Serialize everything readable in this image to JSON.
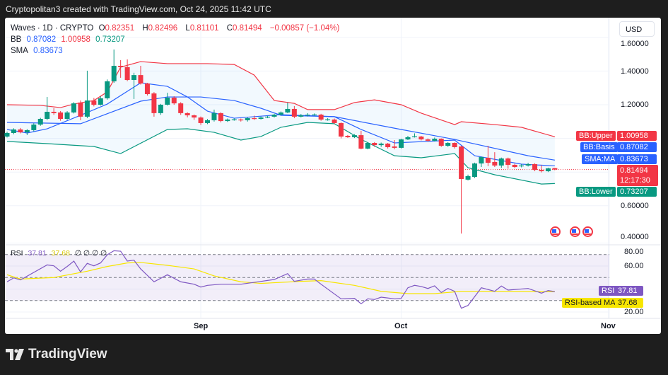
{
  "credit": "Cryptopolitan3 created with TradingView.com, Oct 24, 2025 11:42 UTC",
  "brand": "TradingView",
  "currency_button": "USD",
  "legend": {
    "symbol": "Waves · 1D · CRYPTO",
    "o_label": "O",
    "o": "0.82351",
    "h_label": "H",
    "h": "0.82496",
    "l_label": "L",
    "l": "0.81101",
    "c_label": "C",
    "c": "0.81494",
    "change": "−0.00857 (−1.04%)",
    "bb_label": "BB",
    "bb_basis": "0.87082",
    "bb_upper": "1.00958",
    "bb_lower": "0.73207",
    "sma_label": "SMA",
    "sma": "0.83673",
    "rsi_label": "RSI",
    "rsi": "37.81",
    "rsi_ma": "37.68",
    "rsi_extra": "∅ ∅ ∅ ∅"
  },
  "badges": {
    "bb_upper": {
      "label": "BB:Upper",
      "value": "1.00958"
    },
    "bb_basis": {
      "label": "BB:Basis",
      "value": "0.87082"
    },
    "sma": {
      "label": "SMA:MA",
      "value": "0.83673"
    },
    "price": {
      "value": "0.81494",
      "countdown": "12:17:30"
    },
    "bb_lower": {
      "label": "BB:Lower",
      "value": "0.73207"
    },
    "rsi": {
      "label": "RSI",
      "value": "37.81"
    },
    "rsi_ma": {
      "label": "RSI-based MA",
      "value": "37.68"
    }
  },
  "colors": {
    "up": "#089981",
    "down": "#f23645",
    "basis": "#2962ff",
    "sma": "#2962ff",
    "upper": "#f23645",
    "lower": "#089981",
    "rsi": "#7e57c2",
    "rsi_ma": "#f7e600"
  },
  "icons": [
    "us-flag-event-icon",
    "us-flag-event-icon",
    "us-flag-event-icon",
    "tradingview-logo-icon"
  ],
  "chart_data": {
    "type": "candlestick",
    "price_axis": {
      "ticks": [
        "1.60000",
        "1.40000",
        "1.20000",
        "0.60000",
        "0.40000"
      ]
    },
    "time_axis": {
      "ticks": [
        {
          "date": "09-01",
          "label": "Sep"
        },
        {
          "date": "10-01",
          "label": "Oct"
        },
        {
          "date": "11-01",
          "label": "Nov"
        }
      ]
    },
    "last_price": 0.81494,
    "candles": [
      [
        "08-03",
        1.011,
        1.04,
        1.005,
        1.032
      ],
      [
        "08-04",
        1.032,
        1.06,
        1.025,
        1.053
      ],
      [
        "08-05",
        1.053,
        1.062,
        1.03,
        1.036
      ],
      [
        "08-06",
        1.036,
        1.055,
        1.02,
        1.049
      ],
      [
        "08-07",
        1.049,
        1.09,
        1.042,
        1.082
      ],
      [
        "08-08",
        1.082,
        1.122,
        1.075,
        1.116
      ],
      [
        "08-09",
        1.116,
        1.246,
        1.108,
        1.158
      ],
      [
        "08-10",
        1.158,
        1.18,
        1.14,
        1.15
      ],
      [
        "08-11",
        1.154,
        1.162,
        1.105,
        1.116
      ],
      [
        "08-12",
        1.116,
        1.162,
        1.11,
        1.154
      ],
      [
        "08-13",
        1.154,
        1.215,
        1.148,
        1.208
      ],
      [
        "08-14",
        1.213,
        1.225,
        1.108,
        1.129
      ],
      [
        "08-15",
        1.129,
        1.402,
        1.12,
        1.225
      ],
      [
        "08-16",
        1.225,
        1.24,
        1.19,
        1.2
      ],
      [
        "08-17",
        1.2,
        1.25,
        1.195,
        1.238
      ],
      [
        "08-18",
        1.238,
        1.35,
        1.23,
        1.339
      ],
      [
        "08-19",
        1.339,
        1.528,
        1.33,
        1.431
      ],
      [
        "08-20",
        1.431,
        1.465,
        1.36,
        1.423
      ],
      [
        "08-21",
        1.423,
        1.469,
        1.34,
        1.347
      ],
      [
        "08-22",
        1.347,
        1.39,
        1.234,
        1.376
      ],
      [
        "08-23",
        1.376,
        1.431,
        1.32,
        1.326
      ],
      [
        "08-24",
        1.326,
        1.33,
        1.255,
        1.263
      ],
      [
        "08-25",
        1.267,
        1.275,
        1.129,
        1.15
      ],
      [
        "08-26",
        1.15,
        1.205,
        1.14,
        1.2
      ],
      [
        "08-27",
        1.2,
        1.271,
        1.195,
        1.242
      ],
      [
        "08-28",
        1.242,
        1.25,
        1.2,
        1.208
      ],
      [
        "08-29",
        1.208,
        1.215,
        1.14,
        1.15
      ],
      [
        "08-30",
        1.15,
        1.155,
        1.125,
        1.137
      ],
      [
        "08-31",
        1.137,
        1.142,
        1.11,
        1.124
      ],
      [
        "09-01",
        1.124,
        1.13,
        1.08,
        1.091
      ],
      [
        "09-02",
        1.091,
        1.115,
        1.085,
        1.108
      ],
      [
        "09-03",
        1.108,
        1.171,
        1.1,
        1.15
      ],
      [
        "09-04",
        1.15,
        1.155,
        1.095,
        1.103
      ],
      [
        "09-05",
        1.103,
        1.118,
        1.098,
        1.112
      ],
      [
        "09-06",
        1.112,
        1.118,
        1.105,
        1.113
      ],
      [
        "09-07",
        1.112,
        1.118,
        1.1,
        1.108
      ],
      [
        "09-08",
        1.108,
        1.125,
        1.1,
        1.12
      ],
      [
        "09-09",
        1.12,
        1.135,
        1.11,
        1.116
      ],
      [
        "09-10",
        1.116,
        1.13,
        1.112,
        1.124
      ],
      [
        "09-11",
        1.124,
        1.134,
        1.12,
        1.129
      ],
      [
        "09-12",
        1.129,
        1.146,
        1.124,
        1.141
      ],
      [
        "09-13",
        1.141,
        1.16,
        1.136,
        1.154
      ],
      [
        "09-14",
        1.154,
        1.213,
        1.15,
        1.175
      ],
      [
        "09-15",
        1.175,
        1.192,
        1.12,
        1.129
      ],
      [
        "09-16",
        1.129,
        1.145,
        1.125,
        1.137
      ],
      [
        "09-17",
        1.137,
        1.15,
        1.13,
        1.141
      ],
      [
        "09-18",
        1.141,
        1.148,
        1.135,
        1.142
      ],
      [
        "09-19",
        1.141,
        1.146,
        1.105,
        1.112
      ],
      [
        "09-20",
        1.112,
        1.12,
        1.105,
        1.113
      ],
      [
        "09-21",
        1.112,
        1.118,
        1.085,
        1.091
      ],
      [
        "09-22",
        1.091,
        1.095,
        1.0,
        1.011
      ],
      [
        "09-23",
        1.015,
        1.02,
        1.003,
        1.007
      ],
      [
        "09-24",
        1.007,
        1.025,
        1.002,
        1.019
      ],
      [
        "09-25",
        1.019,
        1.045,
        0.935,
        0.939
      ],
      [
        "09-26",
        0.939,
        0.978,
        0.935,
        0.973
      ],
      [
        "09-27",
        0.973,
        0.978,
        0.95,
        0.96
      ],
      [
        "09-28",
        0.96,
        0.975,
        0.95,
        0.969
      ],
      [
        "09-29",
        0.969,
        0.973,
        0.94,
        0.948
      ],
      [
        "09-30",
        0.952,
        0.99,
        0.935,
        0.944
      ],
      [
        "10-01",
        0.944,
        0.998,
        0.94,
        0.994
      ],
      [
        "10-02",
        0.994,
        1.015,
        0.99,
        1.007
      ],
      [
        "10-03",
        1.011,
        1.03,
        1.005,
        1.012
      ],
      [
        "10-04",
        1.011,
        1.015,
        0.988,
        0.994
      ],
      [
        "10-05",
        0.994,
        1.0,
        0.98,
        0.986
      ],
      [
        "10-06",
        0.986,
        1.005,
        0.982,
        0.998
      ],
      [
        "10-07",
        0.998,
        1.0,
        0.95,
        0.956
      ],
      [
        "10-08",
        0.956,
        0.978,
        0.95,
        0.973
      ],
      [
        "10-09",
        0.973,
        0.976,
        0.94,
        0.948
      ],
      [
        "10-10",
        0.952,
        0.956,
        0.435,
        0.759
      ],
      [
        "10-11",
        0.755,
        0.785,
        0.75,
        0.776
      ],
      [
        "10-12",
        0.771,
        0.856,
        0.765,
        0.851
      ],
      [
        "10-13",
        0.851,
        0.892,
        0.83,
        0.889
      ],
      [
        "10-14",
        0.885,
        0.956,
        0.835,
        0.855
      ],
      [
        "10-15",
        0.86,
        0.918,
        0.83,
        0.839
      ],
      [
        "10-16",
        0.839,
        0.886,
        0.825,
        0.881
      ],
      [
        "10-17",
        0.881,
        0.886,
        0.82,
        0.843
      ],
      [
        "10-18",
        0.843,
        0.85,
        0.823,
        0.83
      ],
      [
        "10-19",
        0.834,
        0.848,
        0.828,
        0.839
      ],
      [
        "10-20",
        0.839,
        0.855,
        0.833,
        0.847
      ],
      [
        "10-21",
        0.847,
        0.852,
        0.805,
        0.813
      ],
      [
        "10-22",
        0.813,
        0.84,
        0.798,
        0.805
      ],
      [
        "10-23",
        0.805,
        0.826,
        0.8,
        0.822
      ],
      [
        "10-24",
        0.82351,
        0.82496,
        0.81101,
        0.81494
      ]
    ],
    "bb_upper": [
      [
        "08-03",
        1.2
      ],
      [
        "08-08",
        1.196
      ],
      [
        "08-11",
        1.183
      ],
      [
        "08-13",
        1.204
      ],
      [
        "08-16",
        1.225
      ],
      [
        "08-18",
        1.276
      ],
      [
        "08-20",
        1.423
      ],
      [
        "08-23",
        1.456
      ],
      [
        "08-27",
        1.444
      ],
      [
        "09-02",
        1.444
      ],
      [
        "09-06",
        1.439
      ],
      [
        "09-09",
        1.376
      ],
      [
        "09-12",
        1.225
      ],
      [
        "09-15",
        1.208
      ],
      [
        "09-17",
        1.171
      ],
      [
        "09-21",
        1.171
      ],
      [
        "09-24",
        1.213
      ],
      [
        "09-27",
        1.229
      ],
      [
        "10-01",
        1.2
      ],
      [
        "10-04",
        1.15
      ],
      [
        "10-09",
        1.082
      ],
      [
        "10-10",
        1.099
      ],
      [
        "10-15",
        1.082
      ],
      [
        "10-19",
        1.066
      ],
      [
        "10-24",
        1.00958
      ]
    ],
    "bb_basis": [
      [
        "08-03",
        1.095
      ],
      [
        "08-14",
        1.087
      ],
      [
        "08-23",
        1.221
      ],
      [
        "08-27",
        1.246
      ],
      [
        "09-01",
        1.246
      ],
      [
        "09-06",
        1.225
      ],
      [
        "09-10",
        1.179
      ],
      [
        "09-13",
        1.137
      ],
      [
        "09-21",
        1.129
      ],
      [
        "10-01",
        1.053
      ],
      [
        "10-09",
        0.994
      ],
      [
        "10-20",
        0.897
      ],
      [
        "10-24",
        0.87082
      ]
    ],
    "bb_lower": [
      [
        "08-03",
        0.982
      ],
      [
        "08-09",
        0.969
      ],
      [
        "08-16",
        0.952
      ],
      [
        "08-20",
        0.91
      ],
      [
        "08-27",
        1.053
      ],
      [
        "08-30",
        1.057
      ],
      [
        "09-03",
        1.036
      ],
      [
        "09-07",
        0.99
      ],
      [
        "09-10",
        1.011
      ],
      [
        "09-13",
        1.066
      ],
      [
        "09-17",
        1.095
      ],
      [
        "09-21",
        1.087
      ],
      [
        "09-25",
        0.994
      ],
      [
        "09-30",
        0.897
      ],
      [
        "10-04",
        0.885
      ],
      [
        "10-09",
        0.91
      ],
      [
        "10-11",
        0.826
      ],
      [
        "10-15",
        0.784
      ],
      [
        "10-22",
        0.729
      ],
      [
        "10-24",
        0.73207
      ]
    ],
    "sma": [
      [
        "08-03",
        1.053
      ],
      [
        "08-06",
        1.032
      ],
      [
        "08-09",
        1.057
      ],
      [
        "08-14",
        1.137
      ],
      [
        "08-18",
        1.204
      ],
      [
        "08-23",
        1.33
      ],
      [
        "08-27",
        1.309
      ],
      [
        "08-30",
        1.246
      ],
      [
        "09-02",
        1.162
      ],
      [
        "09-06",
        1.12
      ],
      [
        "09-13",
        1.141
      ],
      [
        "09-21",
        1.129
      ],
      [
        "09-25",
        1.053
      ],
      [
        "09-30",
        0.973
      ],
      [
        "10-09",
        0.99
      ],
      [
        "10-12",
        0.897
      ],
      [
        "10-19",
        0.847
      ],
      [
        "10-24",
        0.83673
      ]
    ],
    "rsi_pane": {
      "ticks": [
        "80.00",
        "60.00",
        "20.00"
      ],
      "levels": [
        70,
        50,
        30
      ],
      "rsi": [
        [
          "08-03",
          46.3
        ],
        [
          "08-04",
          49.7
        ],
        [
          "08-05",
          47.9
        ],
        [
          "08-09",
          61.0
        ],
        [
          "08-10",
          60.2
        ],
        [
          "08-11",
          55.5
        ],
        [
          "08-12",
          59.6
        ],
        [
          "08-13",
          64.3
        ],
        [
          "08-14",
          54.9
        ],
        [
          "08-15",
          62.3
        ],
        [
          "08-16",
          60.2
        ],
        [
          "08-17",
          62.7
        ],
        [
          "08-18",
          69.8
        ],
        [
          "08-19",
          73.3
        ],
        [
          "08-20",
          72.9
        ],
        [
          "08-21",
          64.3
        ],
        [
          "08-22",
          65.1
        ],
        [
          "08-23",
          57.5
        ],
        [
          "08-25",
          46.3
        ],
        [
          "08-27",
          52.4
        ],
        [
          "08-29",
          46.3
        ],
        [
          "08-31",
          44.2
        ],
        [
          "09-01",
          41.7
        ],
        [
          "09-02",
          43.2
        ],
        [
          "09-04",
          44.2
        ],
        [
          "09-07",
          44.2
        ],
        [
          "09-09",
          45.8
        ],
        [
          "09-12",
          48.3
        ],
        [
          "09-14",
          53.4
        ],
        [
          "09-15",
          46.7
        ],
        [
          "09-17",
          48.7
        ],
        [
          "09-18",
          48.7
        ],
        [
          "09-19",
          44.2
        ],
        [
          "09-22",
          31.5
        ],
        [
          "09-24",
          31.9
        ],
        [
          "09-25",
          27.2
        ],
        [
          "09-26",
          31.5
        ],
        [
          "09-27",
          30.9
        ],
        [
          "09-28",
          32.9
        ],
        [
          "09-30",
          31.5
        ],
        [
          "10-01",
          31.9
        ],
        [
          "10-02",
          41.1
        ],
        [
          "10-03",
          43.2
        ],
        [
          "10-04",
          42.2
        ],
        [
          "10-05",
          40.5
        ],
        [
          "10-06",
          42.8
        ],
        [
          "10-07",
          37.0
        ],
        [
          "10-08",
          40.5
        ],
        [
          "10-09",
          38.0
        ],
        [
          "10-10",
          23.3
        ],
        [
          "10-11",
          25.7
        ],
        [
          "10-13",
          41.1
        ],
        [
          "10-15",
          38.0
        ],
        [
          "10-16",
          42.6
        ],
        [
          "10-17",
          39.1
        ],
        [
          "10-20",
          40.5
        ],
        [
          "10-22",
          36.4
        ],
        [
          "10-23",
          38.7
        ],
        [
          "10-24",
          37.81
        ]
      ],
      "rsi_ma": [
        [
          "08-03",
          52.4
        ],
        [
          "08-05",
          48.7
        ],
        [
          "08-10",
          50.0
        ],
        [
          "08-15",
          55.5
        ],
        [
          "08-18",
          59.6
        ],
        [
          "08-21",
          62.7
        ],
        [
          "08-23",
          63.1
        ],
        [
          "08-27",
          60.6
        ],
        [
          "08-31",
          57.5
        ],
        [
          "09-03",
          51.4
        ],
        [
          "09-07",
          46.3
        ],
        [
          "09-10",
          44.9
        ],
        [
          "09-16",
          46.7
        ],
        [
          "09-19",
          47.3
        ],
        [
          "09-24",
          43.2
        ],
        [
          "09-28",
          38.0
        ],
        [
          "10-02",
          36.0
        ],
        [
          "10-06",
          36.0
        ],
        [
          "10-10",
          38.0
        ],
        [
          "10-14",
          38.0
        ],
        [
          "10-24",
          37.68
        ]
      ]
    }
  }
}
